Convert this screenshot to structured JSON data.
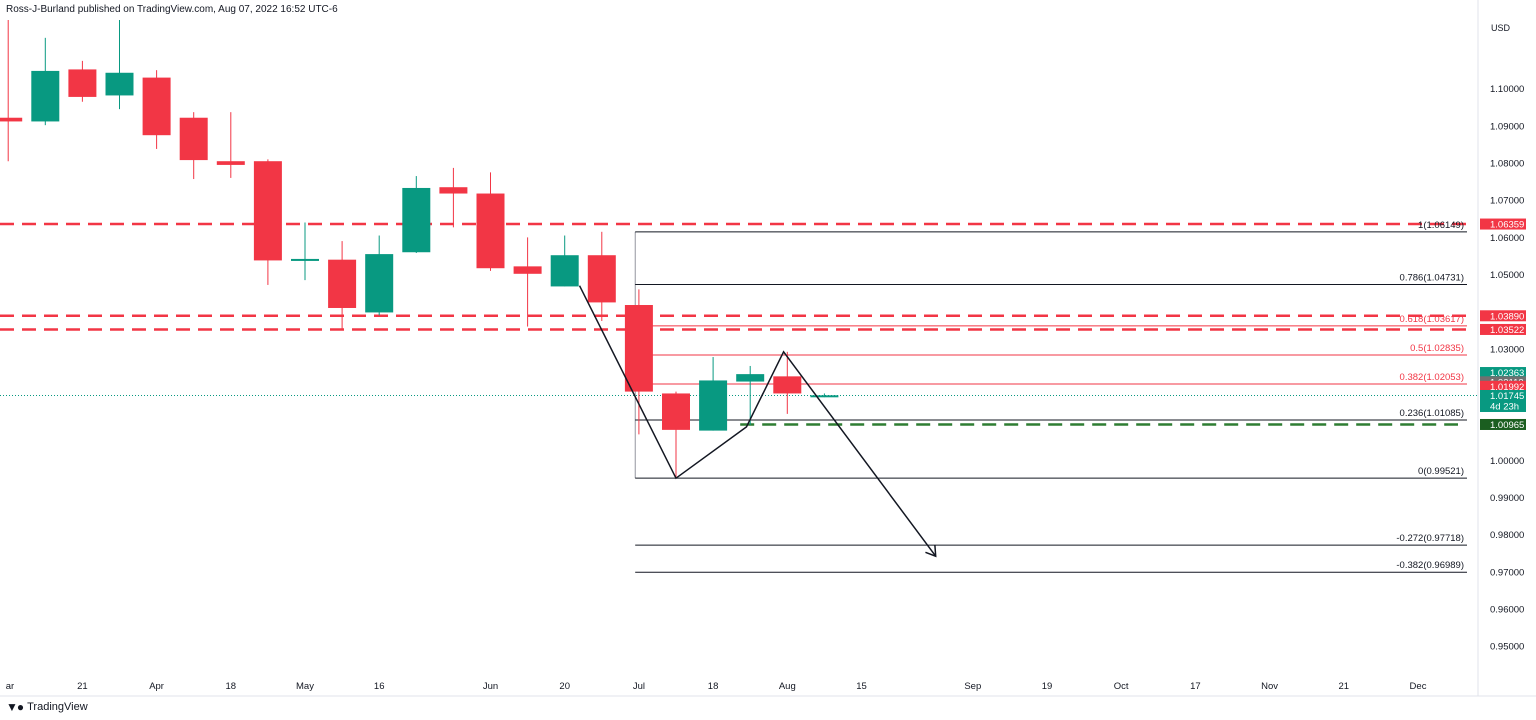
{
  "header": {
    "publisher": "Ross-J-Burland published on TradingView.com, Aug 07, 2022 16:52 UTC-6"
  },
  "footer": {
    "logo_icon": "tradingview-logo-icon",
    "brand": "TradingView"
  },
  "colors": {
    "up": "#089981",
    "down": "#f23645",
    "support": "#2e7d32",
    "axis_text": "#131722",
    "fib_line": "#131722"
  },
  "chart_data": {
    "type": "candlestick",
    "currency_label": "USD",
    "ylim": [
      0.9425,
      1.1185
    ],
    "y_ticks": [
      {
        "value": 0.95,
        "label": "0.95000"
      },
      {
        "value": 0.96,
        "label": "0.96000"
      },
      {
        "value": 0.97,
        "label": "0.97000"
      },
      {
        "value": 0.98,
        "label": "0.98000"
      },
      {
        "value": 0.99,
        "label": "0.99000"
      },
      {
        "value": 1.0,
        "label": "1.00000"
      },
      {
        "value": 1.03,
        "label": "1.03000"
      },
      {
        "value": 1.05,
        "label": "1.05000"
      },
      {
        "value": 1.06,
        "label": "1.06000"
      },
      {
        "value": 1.07,
        "label": "1.07000"
      },
      {
        "value": 1.08,
        "label": "1.08000"
      },
      {
        "value": 1.09,
        "label": "1.09000"
      },
      {
        "value": 1.1,
        "label": "1.10000"
      }
    ],
    "x_ticks": [
      {
        "week": -1,
        "label": "ar"
      },
      {
        "week": 1,
        "label": "21"
      },
      {
        "week": 3,
        "label": "Apr"
      },
      {
        "week": 5,
        "label": "18"
      },
      {
        "week": 7,
        "label": "May"
      },
      {
        "week": 9,
        "label": "16"
      },
      {
        "week": 12,
        "label": "Jun"
      },
      {
        "week": 14,
        "label": "20"
      },
      {
        "week": 16,
        "label": "Jul"
      },
      {
        "week": 18,
        "label": "18"
      },
      {
        "week": 20,
        "label": "Aug"
      },
      {
        "week": 22,
        "label": "15"
      },
      {
        "week": 25,
        "label": "Sep"
      },
      {
        "week": 27,
        "label": "19"
      },
      {
        "week": 29,
        "label": "Oct"
      },
      {
        "week": 31,
        "label": "17"
      },
      {
        "week": 33,
        "label": "Nov"
      },
      {
        "week": 35,
        "label": "21"
      },
      {
        "week": 37,
        "label": "Dec"
      }
    ],
    "candles": [
      {
        "week": -1,
        "open": 1.0922,
        "high": 1.1185,
        "low": 1.0805,
        "close": 1.0912
      },
      {
        "week": 0,
        "open": 1.0912,
        "high": 1.1137,
        "low": 1.0902,
        "close": 1.1048
      },
      {
        "week": 1,
        "open": 1.1052,
        "high": 1.1075,
        "low": 1.0965,
        "close": 1.0978
      },
      {
        "week": 2,
        "open": 1.0982,
        "high": 1.1185,
        "low": 1.0945,
        "close": 1.1043
      },
      {
        "week": 3,
        "open": 1.103,
        "high": 1.105,
        "low": 1.0838,
        "close": 1.0875
      },
      {
        "week": 4,
        "open": 1.0922,
        "high": 1.0937,
        "low": 1.0757,
        "close": 1.0808
      },
      {
        "week": 5,
        "open": 1.0805,
        "high": 1.0937,
        "low": 1.076,
        "close": 1.0795
      },
      {
        "week": 6,
        "open": 1.0805,
        "high": 1.081,
        "low": 1.0472,
        "close": 1.0538
      },
      {
        "week": 7,
        "open": 1.0542,
        "high": 1.064,
        "low": 1.0485,
        "close": 1.0542
      },
      {
        "week": 8,
        "open": 1.054,
        "high": 1.059,
        "low": 1.035,
        "close": 1.041
      },
      {
        "week": 9,
        "open": 1.0398,
        "high": 1.0605,
        "low": 1.039,
        "close": 1.0555
      },
      {
        "week": 10,
        "open": 1.056,
        "high": 1.0765,
        "low": 1.0558,
        "close": 1.0733
      },
      {
        "week": 11,
        "open": 1.0735,
        "high": 1.0787,
        "low": 1.0627,
        "close": 1.0718
      },
      {
        "week": 12,
        "open": 1.0718,
        "high": 1.0775,
        "low": 1.051,
        "close": 1.0517
      },
      {
        "week": 13,
        "open": 1.0522,
        "high": 1.06,
        "low": 1.036,
        "close": 1.0502
      },
      {
        "week": 14,
        "open": 1.0468,
        "high": 1.0605,
        "low": 1.0468,
        "close": 1.0552
      },
      {
        "week": 15,
        "open": 1.0552,
        "high": 1.0615,
        "low": 1.0375,
        "close": 1.0425
      },
      {
        "week": 16,
        "open": 1.0418,
        "high": 1.046,
        "low": 1.007,
        "close": 1.0185
      },
      {
        "week": 17,
        "open": 1.018,
        "high": 1.0185,
        "low": 0.9952,
        "close": 1.0082
      },
      {
        "week": 18,
        "open": 1.008,
        "high": 1.0278,
        "low": 1.008,
        "close": 1.0215
      },
      {
        "week": 19,
        "open": 1.0212,
        "high": 1.0254,
        "low": 1.0095,
        "close": 1.0232
      },
      {
        "week": 20,
        "open": 1.0226,
        "high": 1.0292,
        "low": 1.0125,
        "close": 1.018
      },
      {
        "week": 21,
        "open": 1.0175,
        "high": 1.018,
        "low": 1.017,
        "close": 1.0175
      }
    ],
    "current_price": 1.01745,
    "red_dashed_levels": [
      1.06359,
      1.0389,
      1.03522
    ],
    "green_dashed_level": 1.00965,
    "fib_start_week": 15.9,
    "fib_levels": [
      {
        "value": 1.06149,
        "label": "1(1.06149)",
        "color": "#131722"
      },
      {
        "value": 1.04731,
        "label": "0.786(1.04731)",
        "color": "#131722"
      },
      {
        "value": 1.03617,
        "label": "0.618(1.03617)",
        "color": "#f23645"
      },
      {
        "value": 1.02835,
        "label": "0.5(1.02835)",
        "color": "#f23645"
      },
      {
        "value": 1.02053,
        "label": "0.382(1.02053)",
        "color": "#f23645"
      },
      {
        "value": 1.01085,
        "label": "0.236(1.01085)",
        "color": "#131722"
      },
      {
        "value": 0.99521,
        "label": "0(0.99521)",
        "color": "#131722"
      },
      {
        "value": 0.97718,
        "label": "-0.272(0.97718)",
        "color": "#131722"
      },
      {
        "value": 0.96989,
        "label": "-0.382(0.96989)",
        "color": "#131722"
      }
    ],
    "pattern_path": [
      {
        "week": 14.4,
        "value": 1.047
      },
      {
        "week": 17.0,
        "value": 0.9952
      },
      {
        "week": 18.9,
        "value": 1.009
      },
      {
        "week": 19.9,
        "value": 1.0292
      },
      {
        "week": 24.0,
        "value": 0.9742
      }
    ],
    "price_badges": [
      {
        "value": 1.06359,
        "label": "1.06359",
        "bg": "#f23645",
        "fg": "#ffffff"
      },
      {
        "value": 1.0389,
        "label": "1.03890",
        "bg": "#f23645",
        "fg": "#ffffff"
      },
      {
        "value": 1.03522,
        "label": "1.03522",
        "bg": "#f23645",
        "fg": "#ffffff"
      },
      {
        "value": 1.02363,
        "label": "1.02363",
        "bg": "#089981",
        "fg": "#ffffff"
      },
      {
        "value": 1.02113,
        "label": "1.02113",
        "bg": "#707070",
        "fg": "#ffffff"
      },
      {
        "value": 1.01992,
        "label": "1.01992",
        "bg": "#f23645",
        "fg": "#ffffff"
      },
      {
        "value": 1.01745,
        "label": "1.01745",
        "sub": "4d 23h",
        "bg": "#089981",
        "fg": "#ffffff"
      },
      {
        "value": 1.00965,
        "label": "1.00965",
        "bg": "#1b5e20",
        "fg": "#ffffff"
      }
    ]
  }
}
